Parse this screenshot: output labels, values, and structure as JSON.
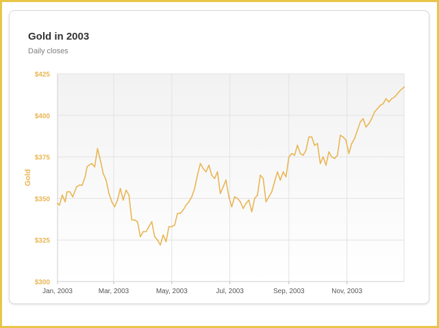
{
  "card": {
    "title": "Gold in 2003",
    "subtitle": "Daily closes"
  },
  "colors": {
    "line": "#e9b552",
    "frame": "#e8c547",
    "grid": "#e2e2e2",
    "plot_bg_top": "#f2f2f2",
    "plot_bg_bottom": "#ffffff"
  },
  "chart_data": {
    "type": "line",
    "title": "Gold in 2003",
    "subtitle": "Daily closes",
    "xlabel": "",
    "ylabel": "Gold",
    "ylim": [
      300,
      425
    ],
    "xlim": [
      "2003-01-01",
      "2003-12-31"
    ],
    "y_ticks": [
      300,
      325,
      350,
      375,
      400,
      425
    ],
    "y_tick_labels": [
      "$300",
      "$325",
      "$350",
      "$375",
      "$400",
      "$425"
    ],
    "x_ticks": [
      "2003-01-01",
      "2003-03-01",
      "2003-05-01",
      "2003-07-01",
      "2003-09-01",
      "2003-11-01"
    ],
    "x_tick_labels": [
      "Jan, 2003",
      "Mar, 2003",
      "May, 2003",
      "Jul, 2003",
      "Sep, 2003",
      "Nov, 2003"
    ],
    "grid": true,
    "legend": "none",
    "series": [
      {
        "x": [
          "2003-01-01",
          "2003-01-03",
          "2003-01-06",
          "2003-01-09",
          "2003-01-11",
          "2003-01-14",
          "2003-01-17",
          "2003-01-21",
          "2003-01-24",
          "2003-01-27",
          "2003-01-30",
          "2003-02-01",
          "2003-02-03",
          "2003-02-06",
          "2003-02-09",
          "2003-02-12",
          "2003-02-15",
          "2003-02-18",
          "2003-02-21",
          "2003-02-24",
          "2003-02-27",
          "2003-03-02",
          "2003-03-05",
          "2003-03-08",
          "2003-03-11",
          "2003-03-14",
          "2003-03-17",
          "2003-03-20",
          "2003-03-23",
          "2003-03-26",
          "2003-03-29",
          "2003-04-01",
          "2003-04-04",
          "2003-04-07",
          "2003-04-10",
          "2003-04-13",
          "2003-04-16",
          "2003-04-19",
          "2003-04-22",
          "2003-04-25",
          "2003-04-28",
          "2003-05-01",
          "2003-05-04",
          "2003-05-07",
          "2003-05-10",
          "2003-05-13",
          "2003-05-16",
          "2003-05-19",
          "2003-05-22",
          "2003-05-25",
          "2003-05-28",
          "2003-05-31",
          "2003-06-03",
          "2003-06-06",
          "2003-06-09",
          "2003-06-12",
          "2003-06-15",
          "2003-06-18",
          "2003-06-21",
          "2003-06-24",
          "2003-06-27",
          "2003-06-30",
          "2003-07-03",
          "2003-07-06",
          "2003-07-09",
          "2003-07-12",
          "2003-07-15",
          "2003-07-18",
          "2003-07-21",
          "2003-07-24",
          "2003-07-27",
          "2003-07-30",
          "2003-08-02",
          "2003-08-05",
          "2003-08-08",
          "2003-08-11",
          "2003-08-14",
          "2003-08-17",
          "2003-08-20",
          "2003-08-23",
          "2003-08-26",
          "2003-08-29",
          "2003-09-01",
          "2003-09-04",
          "2003-09-07",
          "2003-09-10",
          "2003-09-13",
          "2003-09-16",
          "2003-09-19",
          "2003-09-22",
          "2003-09-25",
          "2003-09-28",
          "2003-10-01",
          "2003-10-04",
          "2003-10-07",
          "2003-10-10",
          "2003-10-13",
          "2003-10-16",
          "2003-10-19",
          "2003-10-22",
          "2003-10-25",
          "2003-10-28",
          "2003-10-31",
          "2003-11-03",
          "2003-11-06",
          "2003-11-09",
          "2003-11-12",
          "2003-11-15",
          "2003-11-18",
          "2003-11-21",
          "2003-11-24",
          "2003-11-27",
          "2003-11-30",
          "2003-12-03",
          "2003-12-06",
          "2003-12-09",
          "2003-12-12",
          "2003-12-15",
          "2003-12-18",
          "2003-12-21",
          "2003-12-24",
          "2003-12-27",
          "2003-12-31"
        ],
        "values": [
          347,
          346,
          352,
          348,
          354,
          354,
          351,
          357,
          358,
          358,
          363,
          369,
          370,
          371,
          369,
          380,
          373,
          365,
          361,
          353,
          348,
          345,
          349,
          356,
          349,
          355,
          352,
          337,
          337,
          336,
          327,
          330,
          330,
          333,
          336,
          327,
          325,
          322,
          328,
          324,
          333,
          333,
          334,
          341,
          341,
          343,
          346,
          348,
          351,
          356,
          364,
          371,
          368,
          366,
          370,
          364,
          362,
          366,
          353,
          357,
          361,
          351,
          345,
          351,
          350,
          348,
          344,
          347,
          349,
          342,
          350,
          352,
          364,
          362,
          348,
          351,
          354,
          360,
          366,
          361,
          366,
          363,
          375,
          377,
          376,
          382,
          377,
          376,
          379,
          387,
          387,
          382,
          383,
          371,
          375,
          370,
          378,
          375,
          374,
          376,
          388,
          387,
          385,
          377,
          383,
          386,
          391,
          396,
          398,
          393,
          395,
          398,
          402,
          404,
          406,
          407,
          410,
          408,
          410,
          411,
          413,
          415,
          417
        ]
      }
    ]
  }
}
